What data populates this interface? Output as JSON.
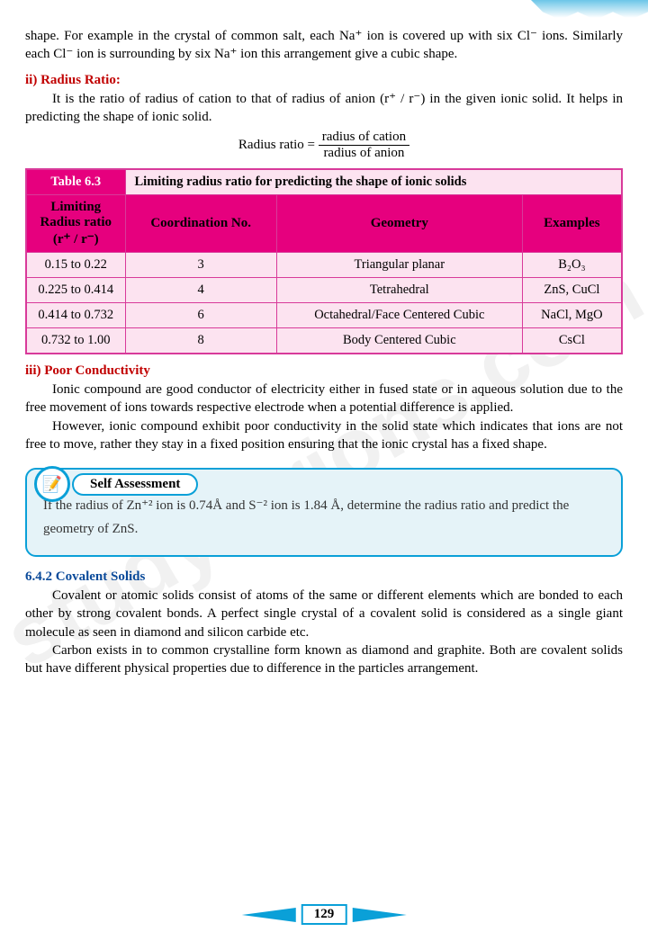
{
  "watermark": "studyforions.com",
  "para1": "shape. For example in the crystal of common salt, each Na⁺ ion is covered up with six Cl⁻ ions. Similarly each Cl⁻ ion is surrounding by six Na⁺ ion this arrangement give a cubic shape.",
  "heading_ii": "ii) Radius Ratio:",
  "para_ii": "It is the ratio of radius of cation to that of radius of anion (r⁺ / r⁻) in the given ionic solid. It helps in predicting the shape of ionic solid.",
  "formula_label": "Radius ratio =",
  "formula_num": "radius of cation",
  "formula_den": "radius of anion",
  "table": {
    "label": "Table 6.3",
    "title": "Limiting radius ratio for predicting the shape of ionic solids",
    "headers": [
      "Limiting Radius ratio (r⁺ / r⁻)",
      "Coordination No.",
      "Geometry",
      "Examples"
    ],
    "rows": [
      [
        "0.15 to 0.22",
        "3",
        "Triangular planar",
        "B₂O₃"
      ],
      [
        "0.225 to 0.414",
        "4",
        "Tetrahedral",
        "ZnS, CuCl"
      ],
      [
        "0.414 to 0.732",
        "6",
        "Octahedral/Face Centered Cubic",
        "NaCl, MgO"
      ],
      [
        "0.732 to 1.00",
        "8",
        "Body Centered Cubic",
        "CsCl"
      ]
    ]
  },
  "heading_iii": "iii) Poor Conductivity",
  "para_iii_1": "Ionic compound are good conductor of electricity either in fused state or in aqueous solution due to the free movement of ions towards respective electrode when a potential difference is applied.",
  "para_iii_2": "However, ionic compound exhibit poor conductivity in the solid state which indicates that ions are not free to move, rather they stay in a fixed position ensuring that the ionic crystal has a fixed shape.",
  "self_assessment": {
    "label": "Self Assessment",
    "text": "If the radius of Zn⁺² ion is 0.74Å and S⁻² ion is 1.84 Å, determine the radius ratio and predict the geometry of ZnS."
  },
  "heading_642": "6.4.2 Covalent Solids",
  "para_642_1": "Covalent or atomic solids consist of atoms of the same or different elements which are bonded to each other by strong covalent bonds. A perfect single crystal of a covalent solid is considered as a single giant molecule as seen in diamond and silicon carbide etc.",
  "para_642_2": "Carbon exists in to common crystalline form known as diamond and graphite. Both are covalent solids but have different physical properties due to difference in the particles arrangement.",
  "page_number": "129"
}
